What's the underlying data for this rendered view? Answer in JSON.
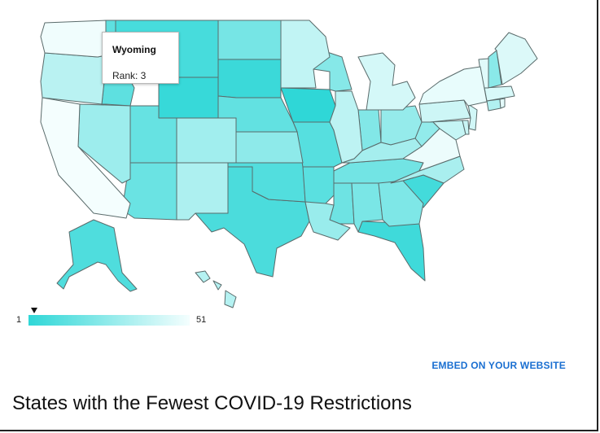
{
  "tooltip": {
    "state": "Wyoming",
    "rank_text": "Rank: 3"
  },
  "legend": {
    "min": "1",
    "max": "51",
    "color_low_rank": "#2fd7d7",
    "color_high_rank": "#f4fefe",
    "marker_value": 3
  },
  "embed_link": "EMBED ON YOUR WEBSITE",
  "page_title": "States with the Fewest COVID-19 Restrictions",
  "map_data": {
    "type": "choropleth",
    "metric": "rank",
    "shaded_states": [
      {
        "state": "Wyoming",
        "rank": 3
      },
      {
        "state": "Iowa",
        "rank": 1
      },
      {
        "state": "South Dakota",
        "rank": 4
      },
      {
        "state": "Florida",
        "rank": 5
      },
      {
        "state": "South Carolina",
        "rank": 6
      },
      {
        "state": "Montana",
        "rank": 7
      },
      {
        "state": "Texas",
        "rank": 8
      },
      {
        "state": "Alaska",
        "rank": 9
      },
      {
        "state": "Oklahoma",
        "rank": 10
      },
      {
        "state": "Missouri",
        "rank": 11
      },
      {
        "state": "Arkansas",
        "rank": 12
      },
      {
        "state": "Idaho",
        "rank": 13
      },
      {
        "state": "Nebraska",
        "rank": 14
      },
      {
        "state": "Utah",
        "rank": 15
      },
      {
        "state": "Arizona",
        "rank": 16
      },
      {
        "state": "Mississippi",
        "rank": 17
      },
      {
        "state": "Tennessee",
        "rank": 18
      },
      {
        "state": "North Dakota",
        "rank": 19
      },
      {
        "state": "Alabama",
        "rank": 20
      },
      {
        "state": "Georgia",
        "rank": 21
      },
      {
        "state": "Indiana",
        "rank": 22
      },
      {
        "state": "Wisconsin",
        "rank": 23
      },
      {
        "state": "New Hampshire",
        "rank": 24
      },
      {
        "state": "Kansas",
        "rank": 25
      },
      {
        "state": "West Virginia",
        "rank": 26
      },
      {
        "state": "Ohio",
        "rank": 27
      },
      {
        "state": "Louisiana",
        "rank": 28
      },
      {
        "state": "Nevada",
        "rank": 29
      },
      {
        "state": "Colorado",
        "rank": 30
      },
      {
        "state": "Kentucky",
        "rank": 31
      },
      {
        "state": "North Carolina",
        "rank": 32
      },
      {
        "state": "New Mexico",
        "rank": 33
      },
      {
        "state": "Connecticut",
        "rank": 34
      },
      {
        "state": "Hawaii",
        "rank": 35
      },
      {
        "state": "Oregon",
        "rank": 36
      },
      {
        "state": "Illinois",
        "rank": 37
      },
      {
        "state": "Minnesota",
        "rank": 38
      },
      {
        "state": "Maryland",
        "rank": 39
      },
      {
        "state": "Delaware",
        "rank": 40
      },
      {
        "state": "Pennsylvania",
        "rank": 41
      },
      {
        "state": "New Jersey",
        "rank": 42
      },
      {
        "state": "Michigan",
        "rank": 43
      },
      {
        "state": "Massachusetts",
        "rank": 44
      },
      {
        "state": "Maine",
        "rank": 45
      },
      {
        "state": "Vermont",
        "rank": 46
      },
      {
        "state": "Rhode Island",
        "rank": 47
      },
      {
        "state": "New York",
        "rank": 48
      },
      {
        "state": "Virginia",
        "rank": 49
      },
      {
        "state": "Washington",
        "rank": 50
      },
      {
        "state": "California",
        "rank": 51
      }
    ]
  }
}
